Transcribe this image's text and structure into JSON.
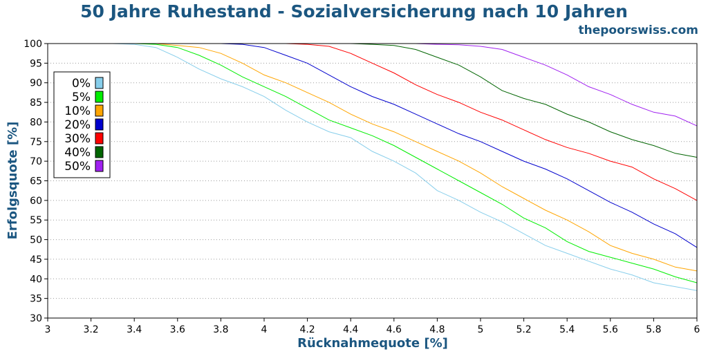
{
  "chart_data": {
    "type": "line",
    "title": "50 Jahre Ruhestand - Sozialversicherung nach 10 Jahren",
    "source": "thepoorswiss.com",
    "xlabel": "Rücknahmequote [%]",
    "ylabel": "Erfolgsquote [%]",
    "xlim": [
      3,
      6
    ],
    "ylim": [
      30,
      100
    ],
    "grid": "horizontal dotted",
    "legend_position": "top-left",
    "x_ticks": [
      "3",
      "3.2",
      "3.4",
      "3.6",
      "3.8",
      "4",
      "4.2",
      "4.4",
      "4.6",
      "4.8",
      "5",
      "5.2",
      "5.4",
      "5.6",
      "5.8",
      "6"
    ],
    "y_ticks": [
      "30",
      "35",
      "40",
      "45",
      "50",
      "55",
      "60",
      "65",
      "70",
      "75",
      "80",
      "85",
      "90",
      "95",
      "100"
    ],
    "x": [
      3.0,
      3.1,
      3.2,
      3.3,
      3.4,
      3.5,
      3.6,
      3.7,
      3.8,
      3.9,
      4.0,
      4.1,
      4.2,
      4.3,
      4.4,
      4.5,
      4.6,
      4.7,
      4.8,
      4.9,
      5.0,
      5.1,
      5.2,
      5.3,
      5.4,
      5.5,
      5.6,
      5.7,
      5.8,
      5.9,
      6.0
    ],
    "series": [
      {
        "name": "0%",
        "color": "#87ceeb",
        "values": [
          100,
          100,
          100,
          100,
          99.8,
          99,
          96.5,
          93.5,
          91,
          89,
          86.5,
          83,
          80,
          77.5,
          76,
          72.5,
          70,
          67,
          62.5,
          60,
          57,
          54.5,
          51.5,
          48.5,
          46.5,
          44.5,
          42.5,
          41,
          39,
          38,
          37
        ]
      },
      {
        "name": "5%",
        "color": "#00ee00",
        "values": [
          100,
          100,
          100,
          100,
          100,
          99.8,
          99,
          97,
          94.5,
          91.5,
          89,
          86.5,
          83.5,
          80.5,
          78.5,
          76.5,
          74,
          71,
          68,
          65,
          62,
          59,
          55.5,
          53,
          49.5,
          47,
          45.5,
          44,
          42.5,
          40.5,
          39
        ]
      },
      {
        "name": "10%",
        "color": "#ffa500",
        "values": [
          100,
          100,
          100,
          100,
          100,
          100,
          99.5,
          99,
          97.5,
          95,
          92,
          90,
          87.5,
          85,
          82,
          79.5,
          77.5,
          75,
          72.5,
          70,
          67,
          63.5,
          60.5,
          57.5,
          55,
          52,
          48.5,
          46.5,
          45,
          43,
          42
        ]
      },
      {
        "name": "20%",
        "color": "#0000cd",
        "values": [
          100,
          100,
          100,
          100,
          100,
          100,
          100,
          100,
          100,
          99.8,
          99,
          97,
          95,
          92,
          89,
          86.5,
          84.5,
          82,
          79.5,
          77,
          75,
          72.5,
          70,
          68,
          65.5,
          62.5,
          59.5,
          57,
          54,
          51.5,
          48
        ]
      },
      {
        "name": "30%",
        "color": "#ff0000",
        "values": [
          100,
          100,
          100,
          100,
          100,
          100,
          100,
          100,
          100,
          100,
          100,
          100,
          99.8,
          99.3,
          97.5,
          95,
          92.5,
          89.5,
          87,
          85,
          82.5,
          80.5,
          78,
          75.5,
          73.5,
          72,
          70,
          68.5,
          65.5,
          63,
          60
        ]
      },
      {
        "name": "40%",
        "color": "#006400",
        "values": [
          100,
          100,
          100,
          100,
          100,
          100,
          100,
          100,
          100,
          100,
          100,
          100,
          100,
          100,
          100,
          99.8,
          99.5,
          98.5,
          96.5,
          94.5,
          91.5,
          88,
          86,
          84.5,
          82,
          80,
          77.5,
          75.5,
          74,
          72,
          71
        ]
      },
      {
        "name": "50%",
        "color": "#a020f0",
        "values": [
          100,
          100,
          100,
          100,
          100,
          100,
          100,
          100,
          100,
          100,
          100,
          100,
          100,
          100,
          100,
          100,
          100,
          100,
          99.8,
          99.7,
          99.3,
          98.5,
          96.5,
          94.5,
          92,
          89,
          87,
          84.5,
          82.5,
          81.5,
          79
        ]
      }
    ]
  }
}
